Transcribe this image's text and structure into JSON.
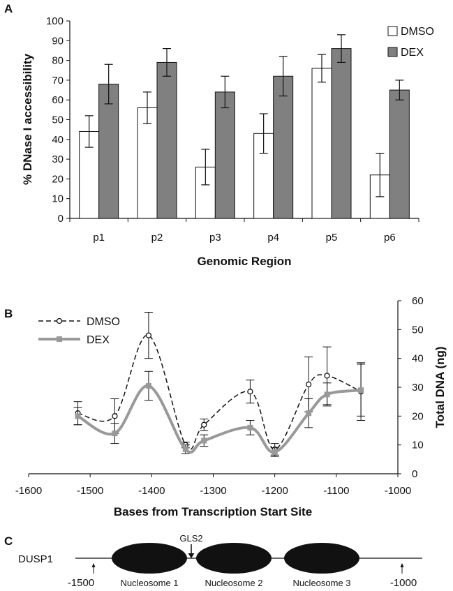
{
  "chart_data": [
    {
      "panel": "A",
      "type": "bar",
      "categories": [
        "p1",
        "p2",
        "p3",
        "p4",
        "p5",
        "p6"
      ],
      "series": [
        {
          "name": "DMSO",
          "color": "#ffffff",
          "values": [
            44,
            56,
            26,
            43,
            76,
            22
          ],
          "errors": [
            8,
            8,
            9,
            10,
            7,
            11
          ]
        },
        {
          "name": "DEX",
          "color": "#808080",
          "values": [
            68,
            79,
            64,
            72,
            86,
            65
          ],
          "errors": [
            10,
            7,
            8,
            10,
            7,
            5
          ]
        }
      ],
      "xlabel": "Genomic Region",
      "ylabel": "% DNase I accessibility",
      "ylim": [
        0,
        100
      ],
      "yticks": [
        0,
        10,
        20,
        30,
        40,
        50,
        60,
        70,
        80,
        90,
        100
      ],
      "legend_position": "top-right",
      "grid": false
    },
    {
      "panel": "B",
      "type": "line",
      "series": [
        {
          "name": "DMSO",
          "color": "#111111",
          "line_style": "dashed",
          "marker": "open-circle",
          "x": [
            -1520,
            -1460,
            -1405,
            -1345,
            -1315,
            -1240,
            -1200,
            -1145,
            -1115,
            -1060
          ],
          "y": [
            21,
            20,
            48,
            10,
            17,
            28.5,
            8.5,
            31,
            34,
            28.5
          ],
          "errors": [
            4,
            6,
            8,
            1,
            2,
            4,
            2,
            9.5,
            10,
            10
          ]
        },
        {
          "name": "DEX",
          "color": "#999999",
          "line_style": "solid",
          "marker": "filled-square",
          "x": [
            -1520,
            -1460,
            -1405,
            -1345,
            -1315,
            -1240,
            -1200,
            -1145,
            -1115,
            -1060
          ],
          "y": [
            20,
            14,
            30.5,
            8.5,
            11.5,
            16,
            7.5,
            21,
            27.5,
            29
          ],
          "errors": [
            3,
            3.5,
            5,
            1.5,
            2,
            2.5,
            1.5,
            5,
            4,
            9
          ]
        }
      ],
      "xlabel": "Bases from Transcription Start Site",
      "ylabel": "Total DNA (ng)",
      "xlim": [
        -1600,
        -1000
      ],
      "ylim": [
        0,
        60
      ],
      "xticks": [
        -1600,
        -1500,
        -1400,
        -1300,
        -1200,
        -1100,
        -1000
      ],
      "yticks": [
        0,
        10,
        20,
        30,
        40,
        50,
        60
      ],
      "y_axis_side": "right",
      "legend_position": "top-left",
      "grid": false
    }
  ],
  "panels": {
    "a": "A",
    "b": "B",
    "c": "C"
  },
  "schematic": {
    "gene_label": "DUSP1",
    "gls_label": "GLS2",
    "nucleosomes": [
      "Nucleosome 1",
      "Nucleosome 2",
      "Nucleosome 3"
    ],
    "position_markers": [
      {
        "value": -1500,
        "label": "-1500"
      },
      {
        "value": -1000,
        "label": "-1000"
      }
    ]
  }
}
